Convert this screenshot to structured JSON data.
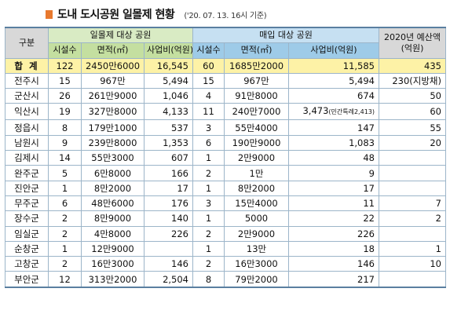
{
  "header": {
    "title": "도내 도시공원 일몰제 현황",
    "subtitle": "('20. 07. 13. 16시 기준)"
  },
  "columns": {
    "region": "구분",
    "group_sunset": "일몰제 대상 공원",
    "group_purchase": "매입 대상 공원",
    "group_budget": "2020년 예산액(억원)",
    "facilities": "시설수",
    "area": "면적(㎡)",
    "project_cost": "사업비(억원)"
  },
  "rows": [
    {
      "region": "합 계",
      "s_count": "122",
      "s_area": "2450만6000",
      "s_cost": "16,545",
      "p_count": "60",
      "p_area": "1685만2000",
      "p_cost": "11,585",
      "budget": "435"
    },
    {
      "region": "전주시",
      "s_count": "15",
      "s_area": "967만",
      "s_cost": "5,494",
      "p_count": "15",
      "p_area": "967만",
      "p_cost": "5,494",
      "budget": "230(지방채)"
    },
    {
      "region": "군산시",
      "s_count": "26",
      "s_area": "261만9000",
      "s_cost": "1,046",
      "p_count": "4",
      "p_area": "91만8000",
      "p_cost": "674",
      "budget": "50"
    },
    {
      "region": "익산시",
      "s_count": "19",
      "s_area": "327만8000",
      "s_cost": "4,133",
      "p_count": "11",
      "p_area": "240만7000",
      "p_cost": "3,473",
      "p_cost_note": "(민간특례2,413)",
      "budget": "60"
    },
    {
      "region": "정읍시",
      "s_count": "8",
      "s_area": "179만1000",
      "s_cost": "537",
      "p_count": "3",
      "p_area": "55만4000",
      "p_cost": "147",
      "budget": "55"
    },
    {
      "region": "남원시",
      "s_count": "9",
      "s_area": "239만8000",
      "s_cost": "1,353",
      "p_count": "6",
      "p_area": "190만9000",
      "p_cost": "1,083",
      "budget": "20"
    },
    {
      "region": "김제시",
      "s_count": "14",
      "s_area": "55만3000",
      "s_cost": "607",
      "p_count": "1",
      "p_area": "2만9000",
      "p_cost": "48",
      "budget": ""
    },
    {
      "region": "완주군",
      "s_count": "5",
      "s_area": "6만8000",
      "s_cost": "166",
      "p_count": "2",
      "p_area": "1만",
      "p_cost": "9",
      "budget": ""
    },
    {
      "region": "진안군",
      "s_count": "1",
      "s_area": "8만2000",
      "s_cost": "17",
      "p_count": "1",
      "p_area": "8만2000",
      "p_cost": "17",
      "budget": ""
    },
    {
      "region": "무주군",
      "s_count": "6",
      "s_area": "48만6000",
      "s_cost": "176",
      "p_count": "3",
      "p_area": "15만4000",
      "p_cost": "11",
      "budget": "7"
    },
    {
      "region": "장수군",
      "s_count": "2",
      "s_area": "8만9000",
      "s_cost": "140",
      "p_count": "1",
      "p_area": "5000",
      "p_cost": "22",
      "budget": "2"
    },
    {
      "region": "임실군",
      "s_count": "2",
      "s_area": "4만8000",
      "s_cost": "226",
      "p_count": "2",
      "p_area": "2만9000",
      "p_cost": "226",
      "budget": ""
    },
    {
      "region": "순창군",
      "s_count": "1",
      "s_area": "12만9000",
      "s_cost": "",
      "p_count": "1",
      "p_area": "13만",
      "p_cost": "18",
      "budget": "1"
    },
    {
      "region": "고창군",
      "s_count": "2",
      "s_area": "16만3000",
      "s_cost": "146",
      "p_count": "2",
      "p_area": "16만3000",
      "p_cost": "146",
      "budget": "10"
    },
    {
      "region": "부안군",
      "s_count": "12",
      "s_area": "313만2000",
      "s_cost": "2,504",
      "p_count": "8",
      "p_area": "79만2000",
      "p_cost": "217",
      "budget": ""
    }
  ]
}
